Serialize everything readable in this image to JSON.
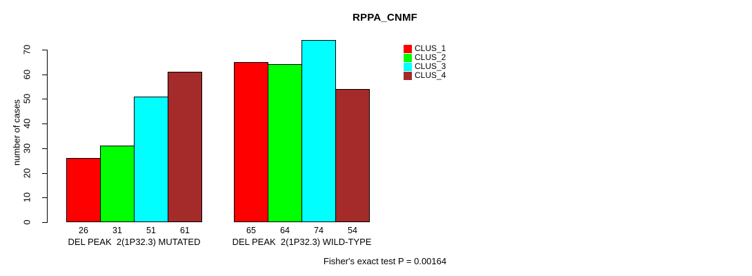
{
  "chart_data": {
    "type": "bar",
    "title": "RPPA_CNMF",
    "xlabel": "",
    "ylabel": "number of cases",
    "ylim": [
      0,
      70
    ],
    "yticks": [
      0,
      10,
      20,
      30,
      40,
      50,
      60,
      70
    ],
    "grid": false,
    "legend_position": "right",
    "bar_value_labels": true,
    "series": [
      {
        "name": "CLUS_1",
        "color": "#FF0000"
      },
      {
        "name": "CLUS_2",
        "color": "#00FF00"
      },
      {
        "name": "CLUS_3",
        "color": "#00FFFF"
      },
      {
        "name": "CLUS_4",
        "color": "#A52A2A"
      }
    ],
    "categories": [
      "DEL PEAK  2(1P32.3) MUTATED",
      "DEL PEAK  2(1P32.3) WILD-TYPE"
    ],
    "groups": [
      {
        "label": "DEL PEAK  2(1P32.3) MUTATED",
        "values": [
          26,
          31,
          51,
          61
        ]
      },
      {
        "label": "DEL PEAK  2(1P32.3) WILD-TYPE",
        "values": [
          65,
          64,
          74,
          54
        ]
      }
    ],
    "annotation": "Fisher's exact test P = 0.00164"
  }
}
